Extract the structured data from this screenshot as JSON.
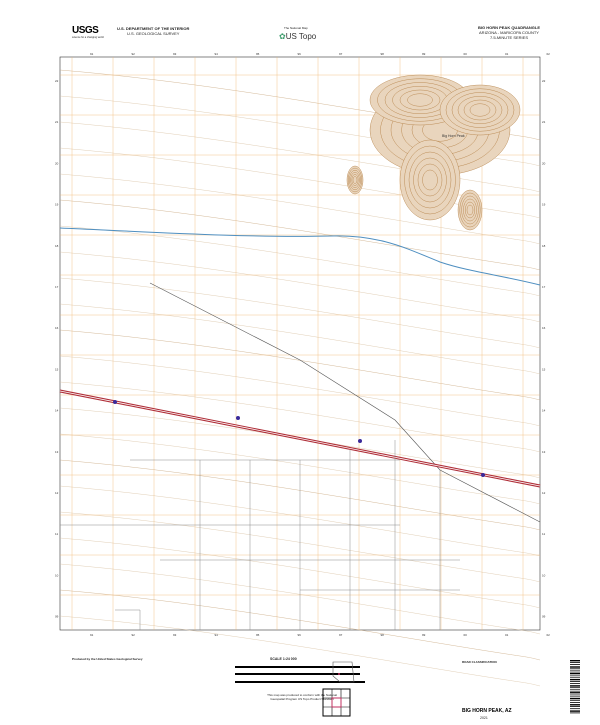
{
  "header": {
    "logo": "USGS",
    "logo_tagline": "science for a changing world",
    "department": "U.S. DEPARTMENT OF THE INTERIOR",
    "survey": "U.S. GEOLOGICAL SURVEY",
    "national_map": "The National Map",
    "us_topo": "US Topo",
    "quadrangle": "BIG HORN PEAK QUADRANGLE",
    "state_county": "ARIZONA - MARICOPA COUNTY",
    "series": "7.5-MINUTE SERIES"
  },
  "map": {
    "peak_label": "Big Horn Peak",
    "top_ticks": [
      "91",
      "92",
      "93",
      "94",
      "95",
      "96",
      "97",
      "98",
      "99",
      "00",
      "01",
      "02"
    ],
    "right_ticks": [
      "22",
      "21",
      "20",
      "19",
      "18",
      "17",
      "16",
      "15",
      "14",
      "13",
      "12",
      "11",
      "10",
      "09"
    ],
    "colors": {
      "contour": "#b07a3c",
      "section_line": "#f2b872",
      "water": "#4f8fc0",
      "interstate": "#b0303a",
      "road": "#555555",
      "grid": "#7a96b0"
    }
  },
  "footer": {
    "producer": "Produced by the United States Geological Survey",
    "scale": "SCALE 1:24 000",
    "road_classification": "ROAD CLASSIFICATION",
    "notes": "This map was produced to conform with the National Geospatial Program US Topo Product Standard",
    "title": "BIG HORN PEAK, AZ",
    "year": "2021"
  }
}
